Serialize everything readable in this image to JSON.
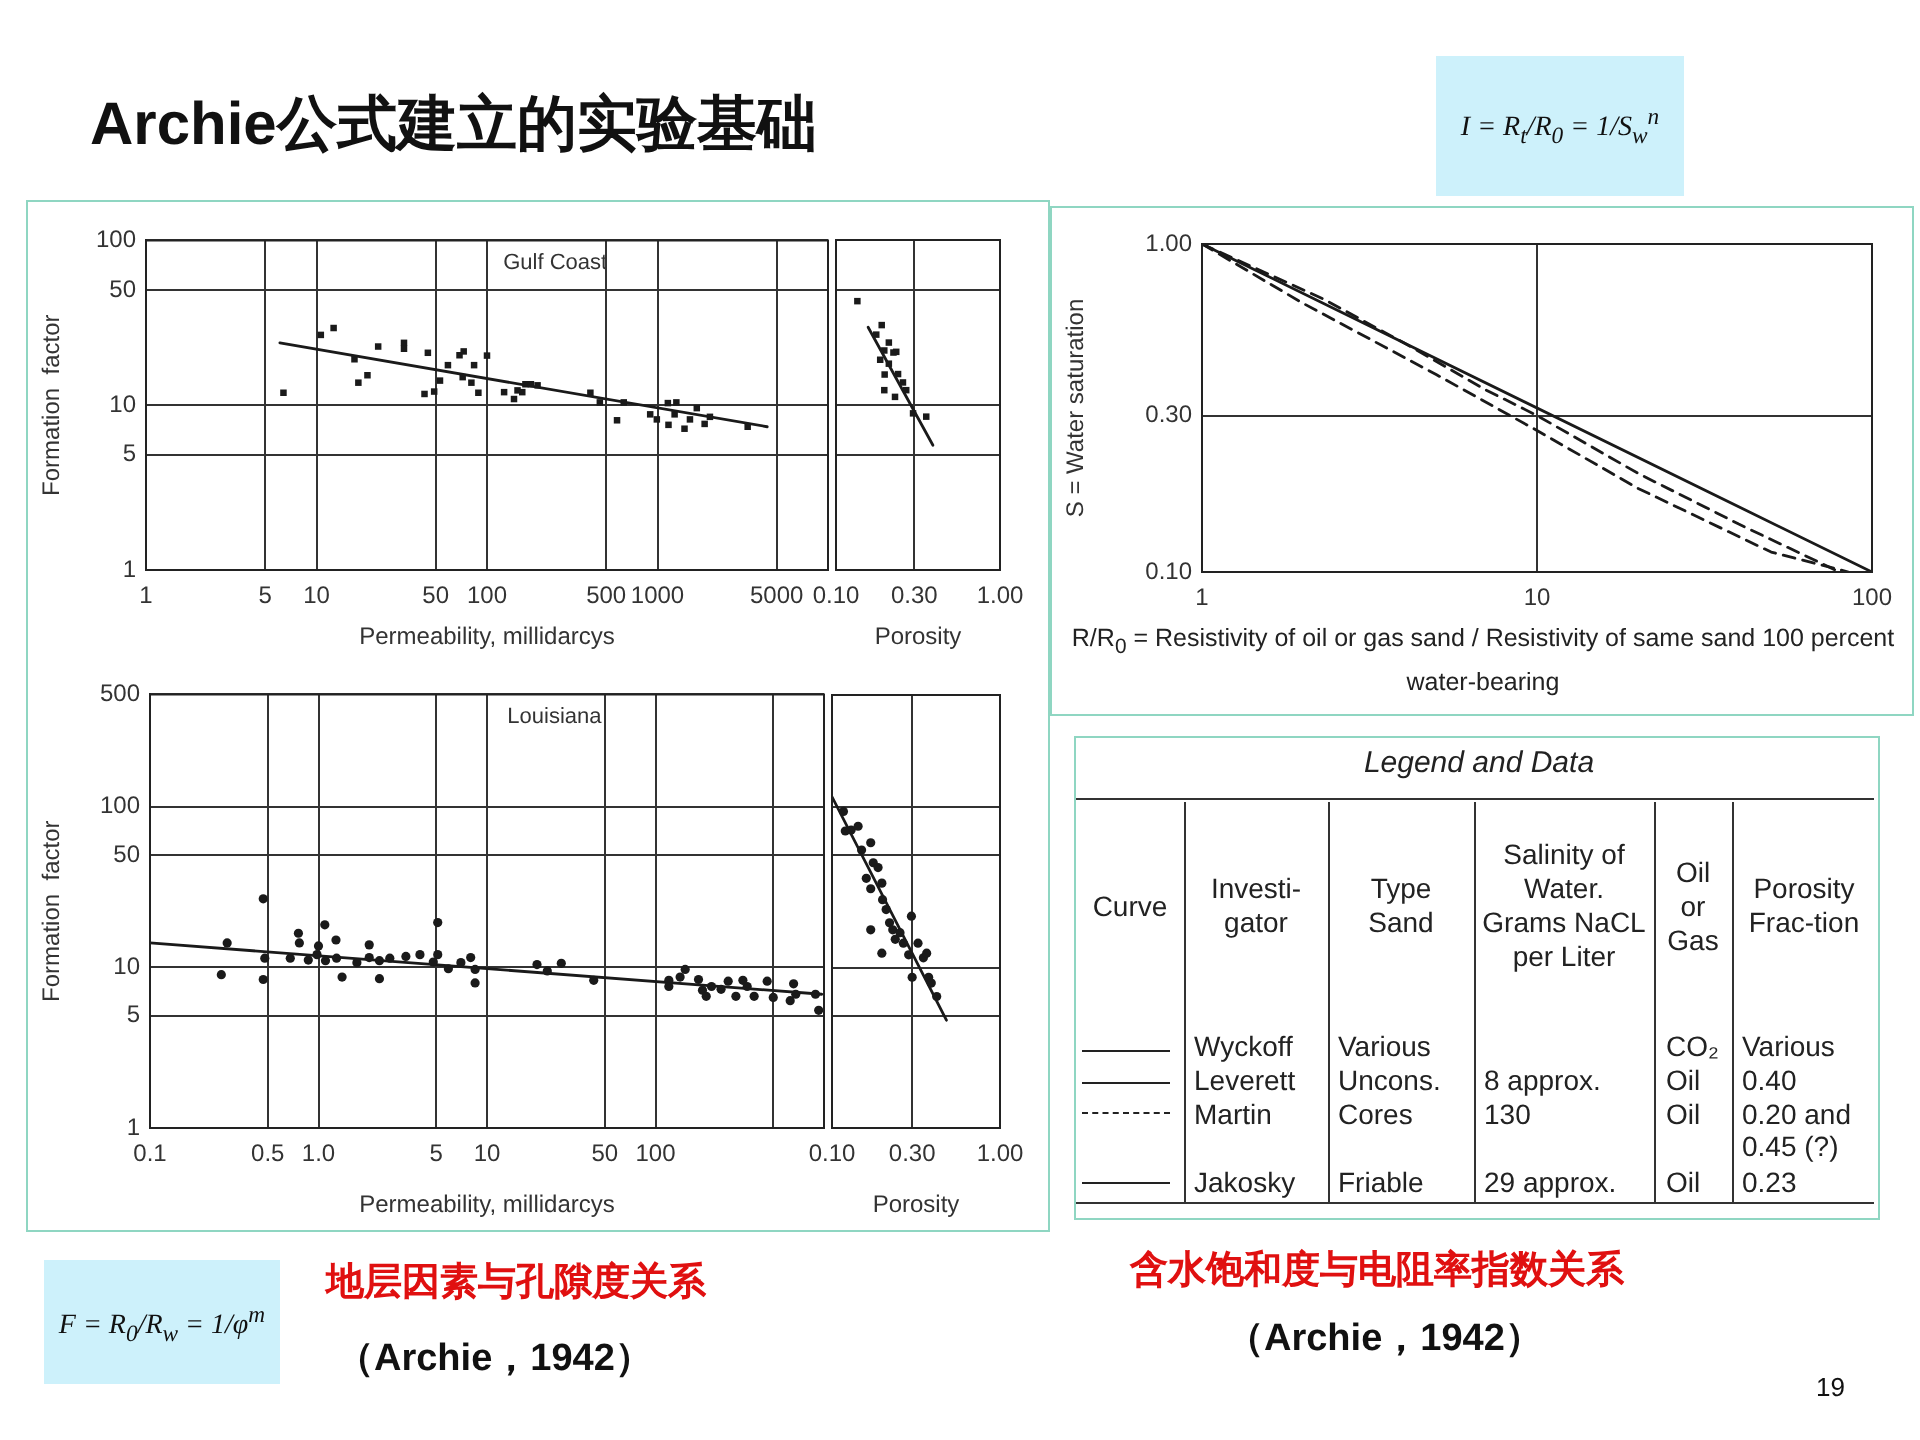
{
  "chart_data": [
    {
      "type": "scatter",
      "xlabel": "Permeability, millidarcys",
      "ylabel": "Formation  factor",
      "annotations": [
        "Gulf Coast"
      ],
      "log": "xy",
      "xlim": [
        1,
        10000
      ],
      "xticks": [
        1,
        5,
        10,
        50,
        100,
        500,
        1000,
        5000
      ],
      "ylim": [
        1,
        100
      ],
      "yticks": [
        1,
        5,
        10,
        50,
        100
      ],
      "grid": true,
      "marker": "square",
      "series": [
        {
          "color": "#1a1a1a",
          "x": [
            6.4,
            10.6,
            12.6,
            16.7,
            17.6,
            19.9,
            23,
            32.6,
            32.6,
            43,
            45,
            49,
            53,
            59,
            69,
            73,
            72,
            81,
            84,
            89,
            100,
            126,
            144,
            151,
            161,
            168,
            181,
            198,
            404,
            459,
            579,
            634,
            906,
            991,
            1150,
            1160,
            1260,
            1290,
            1440,
            1550,
            1700,
            1890,
            2030,
            3380
          ],
          "values": [
            11.9,
            26.7,
            29.4,
            19,
            13.7,
            15.2,
            22.7,
            23.9,
            22,
            11.7,
            20.8,
            12.1,
            14.1,
            17.5,
            20.1,
            21.2,
            14.8,
            13.7,
            17.5,
            11.9,
            20,
            12,
            10.9,
            12.3,
            12,
            13.4,
            13.4,
            13.2,
            11.9,
            10.4,
            8.1,
            10.4,
            8.8,
            8.2,
            10.3,
            7.6,
            8.8,
            10.4,
            7.2,
            8.2,
            9.6,
            7.7,
            8.5,
            7.4
          ]
        },
        {
          "type": "line",
          "marker": "none",
          "color": "#1a1a1a",
          "x": [
            6.1,
            4400
          ],
          "values": [
            23.9,
            7.4
          ]
        }
      ]
    },
    {
      "type": "scatter",
      "xlabel": "Porosity",
      "log": "xy",
      "xlim": [
        0.1,
        1
      ],
      "xticks": [
        {
          "value": 0.1,
          "label": "0.10"
        },
        {
          "value": 0.3,
          "label": "0.30"
        },
        {
          "value": 1,
          "label": "1.00"
        }
      ],
      "ylim": [
        1,
        100
      ],
      "yticks": [
        1,
        5,
        10,
        50,
        100
      ],
      "tick_labels": "x",
      "grid": true,
      "marker": "square",
      "series": [
        {
          "color": "#1a1a1a",
          "x": [
            0.135,
            0.176,
            0.19,
            0.186,
            0.197,
            0.21,
            0.198,
            0.197,
            0.21,
            0.224,
            0.233,
            0.229,
            0.239,
            0.256,
            0.268,
            0.295,
            0.355
          ],
          "values": [
            42.6,
            26.7,
            30.5,
            18.8,
            21.4,
            23.9,
            15.3,
            12.3,
            17.8,
            20.8,
            21,
            11.2,
            15.4,
            13.7,
            12.3,
            8.9,
            8.5
          ]
        },
        {
          "type": "line",
          "marker": "none",
          "color": "#1a1a1a",
          "x": [
            0.157,
            0.39
          ],
          "values": [
            29.6,
            5.7
          ]
        }
      ]
    },
    {
      "type": "scatter",
      "xlabel": "Permeability, millidarcys",
      "ylabel": "Formation  factor",
      "annotations": [
        "Louisiana"
      ],
      "log": "xy",
      "xlim": [
        0.1,
        1000
      ],
      "xticks": [
        0.1,
        0.5,
        {
          "value": 1,
          "label": "1.0"
        },
        5,
        10,
        50,
        100,
        {
          "value": 500,
          "label": null
        }
      ],
      "ylim": [
        1,
        500
      ],
      "yticks": [
        1,
        5,
        10,
        50,
        100,
        500
      ],
      "grid": true,
      "marker": "circle",
      "series": [
        {
          "color": "#1a1a1a",
          "x": [
            0.265,
            0.287,
            0.47,
            0.48,
            0.47,
            0.68,
            0.76,
            0.77,
            0.87,
            0.98,
            1,
            1.09,
            1.1,
            1.27,
            1.28,
            1.38,
            1.69,
            2,
            2,
            2.3,
            2.3,
            2.65,
            3.3,
            4,
            4.8,
            5.1,
            5.1,
            5.9,
            7,
            8,
            8.5,
            8.5,
            19.8,
            22.8,
            27.6,
            43,
            120,
            120,
            140,
            150,
            180,
            190,
            200,
            215,
            245,
            270,
            300,
            330,
            350,
            385,
            460,
            500,
            630,
            660,
            680,
            890,
            930
          ],
          "values": [
            9,
            14.2,
            26.7,
            11.4,
            8.4,
            11.4,
            16.3,
            14.2,
            11.1,
            12,
            13.6,
            18.4,
            11,
            14.8,
            11.4,
            8.7,
            10.7,
            13.8,
            11.5,
            11,
            8.5,
            11.4,
            11.7,
            12,
            10.8,
            19,
            12,
            9.8,
            10.7,
            11.5,
            9.7,
            8,
            10.4,
            9.5,
            10.6,
            8.3,
            8.3,
            7.6,
            8.7,
            9.7,
            8.4,
            7.2,
            6.6,
            7.6,
            7.3,
            8.2,
            6.6,
            8.3,
            7.6,
            6.6,
            8.2,
            6.5,
            6.2,
            7.9,
            6.8,
            6.8,
            5.4
          ]
        },
        {
          "type": "line",
          "marker": "none",
          "color": "#1a1a1a",
          "x": [
            0.1,
            970
          ],
          "values": [
            14.2,
            6.8
          ]
        }
      ]
    },
    {
      "type": "scatter",
      "xlabel": "Porosity",
      "log": "xy",
      "xlim": [
        0.1,
        1
      ],
      "xticks": [
        {
          "value": 0.1,
          "label": "0.10"
        },
        {
          "value": 0.3,
          "label": "0.30"
        },
        {
          "value": 1,
          "label": "1.00"
        }
      ],
      "ylim": [
        1,
        500
      ],
      "yticks": [
        1,
        5,
        10,
        50,
        100,
        500
      ],
      "tick_labels": "x",
      "grid": true,
      "marker": "circle",
      "series": [
        {
          "color": "#1a1a1a",
          "x": [
            0.117,
            0.12,
            0.13,
            0.143,
            0.15,
            0.17,
            0.16,
            0.17,
            0.176,
            0.188,
            0.198,
            0.2,
            0.17,
            0.198,
            0.21,
            0.22,
            0.23,
            0.238,
            0.254,
            0.266,
            0.286,
            0.297,
            0.3,
            0.325,
            0.35,
            0.366,
            0.376,
            0.39,
            0.42
          ],
          "values": [
            94,
            71,
            72,
            76,
            54,
            60,
            36,
            31,
            45,
            42,
            33.6,
            26.5,
            17.2,
            12.3,
            23,
            19,
            17.2,
            15,
            16.5,
            14.2,
            12,
            20.9,
            8.7,
            14.2,
            11.5,
            12.3,
            8.7,
            8,
            6.6
          ]
        },
        {
          "type": "line",
          "marker": "none",
          "color": "#1a1a1a",
          "x": [
            0.1,
            0.48
          ],
          "values": [
            116,
            4.7
          ]
        }
      ]
    },
    {
      "type": "line",
      "xlabel": "R/R$_{0}$ = Resistivity of oil or gas sand / Resistivity of same sand 100 percent water-bearing",
      "ylabel": "S = Water saturation",
      "log": "xy",
      "xlim": [
        1,
        100
      ],
      "xticks": [
        1,
        10,
        100
      ],
      "ylim": [
        0.1,
        1
      ],
      "yticks": [
        {
          "value": 0.1,
          "label": "0.10"
        },
        {
          "value": 0.3,
          "label": "0.30"
        },
        {
          "value": 1,
          "label": "1.00"
        }
      ],
      "grid": true,
      "marker": "none",
      "series": [
        {
          "color": "#1a1a1a",
          "x": [
            1,
            100
          ],
          "values": [
            1,
            0.1
          ]
        },
        {
          "color": "#1a1a1a",
          "line_style": "dashed",
          "x": [
            1,
            2.3,
            4,
            7,
            10,
            20,
            40,
            80
          ],
          "values": [
            1,
            0.68,
            0.5,
            0.36,
            0.3,
            0.2,
            0.14,
            0.1
          ]
        },
        {
          "color": "#1a1a1a",
          "line_style": "dashed",
          "x": [
            1,
            2,
            5,
            10,
            20,
            50,
            85
          ],
          "values": [
            1,
            0.66,
            0.4,
            0.27,
            0.18,
            0.115,
            0.1
          ]
        }
      ]
    },
    {
      "type": "other",
      "title": "Legend and Data",
      "annotations": [
        "Curve",
        "Investi-gator",
        "Type Sand",
        "Salinity of Water. Grams NaCL per Liter",
        "Oil or Gas",
        "Porosity Frac-tion",
        "Wyckoff",
        "Various",
        "CO₂",
        "Various",
        "Leverett",
        "Uncons.",
        "8 approx.",
        "Oil",
        "0.40",
        "Martin",
        "Cores",
        "130",
        "Oil",
        "0.20 and 0.45 (?)",
        "Jakosky",
        "Friable",
        "29 approx.",
        "Oil",
        "0.23"
      ]
    },
    {
      "type": "other",
      "title": "Archie公式建立的实验基础",
      "annotations": [
        "I = R$_{t}$/R$_{0}$ = 1/S$_{w}$$^{n}$",
        "F = R$_{0}$/R$_{w}$ = 1/φ$^{m}$",
        "地层因素与孔隙度关系",
        "（Archie，1942）",
        "含水饱和度与电阻率指数关系",
        "（Archie，1942）",
        "19"
      ]
    }
  ]
}
